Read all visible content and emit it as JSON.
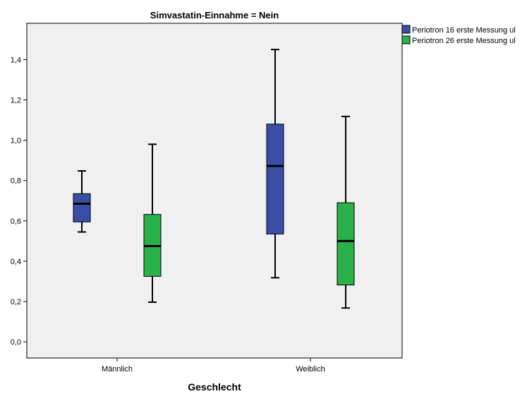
{
  "chart_data": {
    "type": "boxplot",
    "title": "Simvastatin-Einnahme = Nein",
    "xlabel": "Geschlecht",
    "ylabel": "",
    "ylim": [
      -0.08,
      1.58
    ],
    "yticks": [
      0.0,
      0.2,
      0.4,
      0.6,
      0.8,
      1.0,
      1.2,
      1.4
    ],
    "ytick_labels": [
      "0,0",
      "0,2",
      "0,4",
      "0,6",
      "0,8",
      "1,0",
      "1,2",
      "1,4"
    ],
    "categories": [
      "Männlich",
      "Weiblich"
    ],
    "legend_position": "right",
    "grid": false,
    "series": [
      {
        "name": "Periotron 16 erste Messung ul",
        "color": "#3a4ea5",
        "boxes": [
          {
            "min": 0.545,
            "q1": 0.595,
            "median": 0.685,
            "q3": 0.735,
            "max": 0.848
          },
          {
            "min": 0.318,
            "q1": 0.535,
            "median": 0.872,
            "q3": 1.08,
            "max": 1.45
          }
        ]
      },
      {
        "name": "Periotron 26 erste Messung ul",
        "color": "#2ab14a",
        "boxes": [
          {
            "min": 0.197,
            "q1": 0.325,
            "median": 0.475,
            "q3": 0.632,
            "max": 0.98
          },
          {
            "min": 0.168,
            "q1": 0.282,
            "median": 0.5,
            "q3": 0.69,
            "max": 1.118
          }
        ]
      }
    ]
  }
}
